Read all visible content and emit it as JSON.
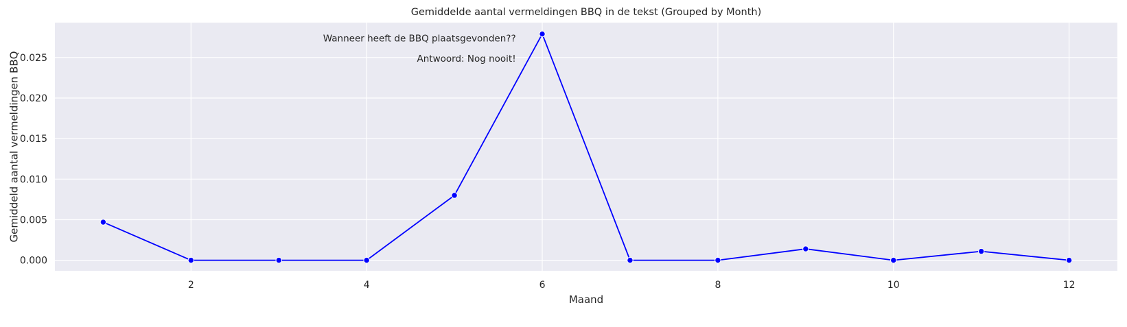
{
  "chart_data": {
    "type": "line",
    "title": "Gemiddelde aantal vermeldingen BBQ in de tekst (Grouped by Month)",
    "xlabel": "Maand",
    "ylabel": "Gemiddeld aantal vermeldingen BBQ",
    "x": [
      1,
      2,
      3,
      4,
      5,
      6,
      7,
      8,
      9,
      10,
      11,
      12
    ],
    "series": [
      {
        "values": [
          0.0047,
          0.0,
          0.0,
          0.0,
          0.008,
          0.0279,
          0.0,
          0.0,
          0.0014,
          0.0,
          0.0011,
          0.0
        ],
        "color": "#0000ff"
      }
    ],
    "xlim": [
      0.45,
      12.55
    ],
    "ylim": [
      -0.0013,
      0.0293
    ],
    "xticks": [
      2,
      4,
      6,
      8,
      10,
      12
    ],
    "xtick_labels": [
      "2",
      "4",
      "6",
      "8",
      "10",
      "12"
    ],
    "yticks": [
      0.0,
      0.005,
      0.01,
      0.015,
      0.02,
      0.025
    ],
    "ytick_labels": [
      "0.000",
      "0.005",
      "0.010",
      "0.015",
      "0.020",
      "0.025"
    ],
    "grid": true,
    "background_color": "#eaeaf2",
    "annotations": [
      {
        "text": "Wanneer heeft de BBQ plaatsgevonden??",
        "x": 5.7,
        "y": 0.0273
      },
      {
        "text": "Antwoord: Nog nooit!",
        "x": 5.7,
        "y": 0.0248
      }
    ]
  }
}
